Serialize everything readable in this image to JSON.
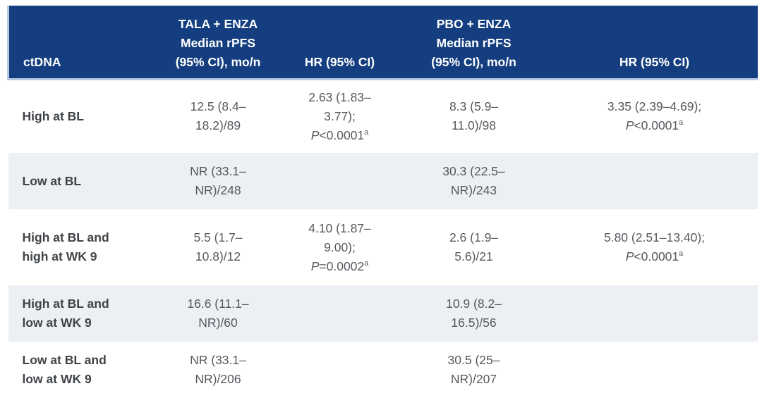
{
  "colors": {
    "header_bg": "#143e7f",
    "header_text": "#ffffff",
    "stripe_bg": "#eceff4",
    "accent_border": "#b6c8e2",
    "label_text": "#3f4347",
    "data_text": "#55595e"
  },
  "table": {
    "header": {
      "col1": "ctDNA",
      "col2_line1": "TALA + ENZA",
      "col2_line2": "Median rPFS",
      "col2_line3": "(95% CI), mo/n",
      "col3": "HR (95% CI)",
      "col4_line1": "PBO + ENZA",
      "col4_line2": "Median rPFS",
      "col4_line3": "(95% CI), mo/n",
      "col5": "HR (95% CI)"
    },
    "rows": [
      {
        "label1": "High at BL",
        "tala1": "12.5 (8.4–",
        "tala2": "18.2)/89",
        "hrT1": "2.63 (1.83–",
        "hrT2": "3.77);",
        "hrT_p_label": "P",
        "hrT_p_value": "<0.0001",
        "hrT_p_sup": "a",
        "pbo1": "8.3 (5.9–",
        "pbo2": "11.0)/98",
        "hrP1": "3.35 (2.39–4.69);",
        "hrP_p_label": "P",
        "hrP_p_value": "<0.0001",
        "hrP_p_sup": "a"
      },
      {
        "label1": "Low at BL",
        "tala1": "NR (33.1–",
        "tala2": "NR)/248",
        "pbo1": "30.3 (22.5–",
        "pbo2": "NR)/243"
      },
      {
        "label1": "High at BL and",
        "label2": "high at WK 9",
        "tala1": "5.5 (1.7–",
        "tala2": "10.8)/12",
        "hrT1": "4.10 (1.87–",
        "hrT2": "9.00);",
        "hrT_p_label": "P",
        "hrT_p_value": "=0.0002",
        "hrT_p_sup": "a",
        "pbo1": "2.6 (1.9–",
        "pbo2": "5.6)/21",
        "hrP1": "5.80 (2.51–13.40);",
        "hrP_p_label": "P",
        "hrP_p_value": "<0.0001",
        "hrP_p_sup": "a"
      },
      {
        "label1": "High at BL and",
        "label2": "low at WK 9",
        "tala1": "16.6 (11.1–",
        "tala2": "NR)/60",
        "pbo1": "10.9 (8.2–",
        "pbo2": "16.5)/56"
      },
      {
        "label1": "Low at BL and",
        "label2": "low at WK 9",
        "tala1": "NR (33.1–",
        "tala2": "NR)/206",
        "pbo1": "30.5 (25–",
        "pbo2": "NR)/207"
      }
    ]
  }
}
